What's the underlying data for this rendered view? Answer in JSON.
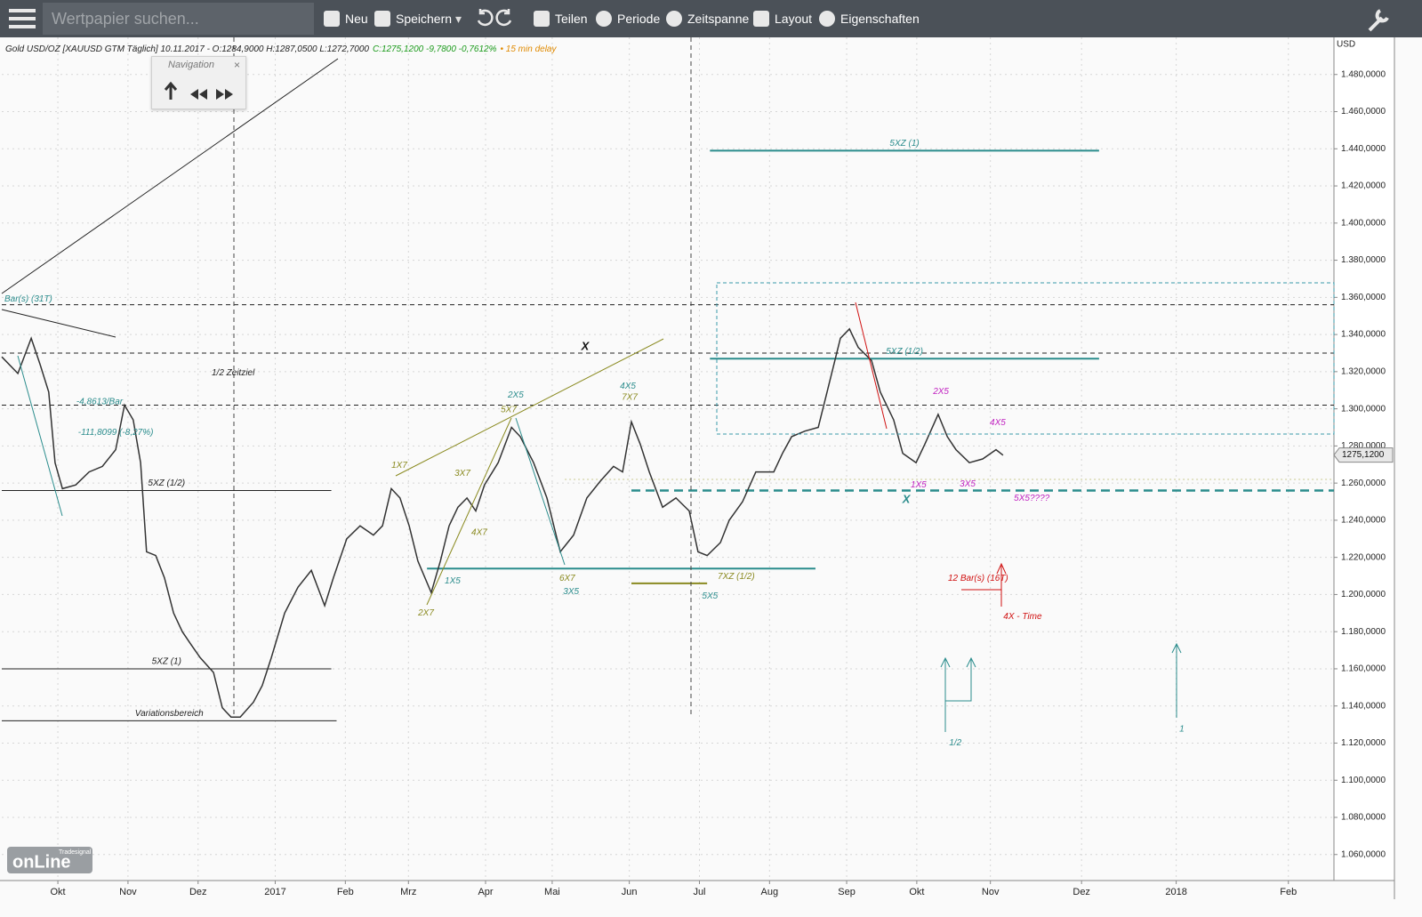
{
  "toolbar": {
    "search_placeholder": "Wertpapier suchen...",
    "buttons": [
      "Neu",
      "Speichern",
      "Teilen",
      "Periode",
      "Zeitspanne",
      "Layout",
      "Eigenschaften"
    ]
  },
  "navigation": {
    "title": "Navigation"
  },
  "logo": {
    "brand": "Tradesignal",
    "name": "onLine"
  },
  "chart_data": {
    "type": "line",
    "header": "Gold USD/OZ [XAUUSD GTM Täglich] 10.11.2017 - O:1284,9000 H:1287,0500 L:1272,7000",
    "change": "C:1275,1200 -9,7800 -0,7612%",
    "delay": "• 15 min delay",
    "y_unit": "USD",
    "color": "#333333",
    "grid": true,
    "xlim": [
      0,
      380
    ],
    "ylim": [
      1046,
      1500
    ],
    "xticks": [
      {
        "value": 16,
        "label": "Okt"
      },
      {
        "value": 36,
        "label": "Nov"
      },
      {
        "value": 56,
        "label": "Dez"
      },
      {
        "value": 78,
        "label": "2017"
      },
      {
        "value": 98,
        "label": "Feb"
      },
      {
        "value": 116,
        "label": "Mrz"
      },
      {
        "value": 138,
        "label": "Apr"
      },
      {
        "value": 157,
        "label": "Mai"
      },
      {
        "value": 179,
        "label": "Jun"
      },
      {
        "value": 199,
        "label": "Jul"
      },
      {
        "value": 219,
        "label": "Aug"
      },
      {
        "value": 241,
        "label": "Sep"
      },
      {
        "value": 261,
        "label": "Okt"
      },
      {
        "value": 282,
        "label": "Nov"
      },
      {
        "value": 308,
        "label": "Dez"
      },
      {
        "value": 335,
        "label": "2018"
      },
      {
        "value": 367,
        "label": "Feb"
      }
    ],
    "yticks": [
      {
        "value": 1060,
        "label": "1.060,0000"
      },
      {
        "value": 1080,
        "label": "1.080,0000"
      },
      {
        "value": 1100,
        "label": "1.100,0000"
      },
      {
        "value": 1120,
        "label": "1.120,0000"
      },
      {
        "value": 1140,
        "label": "1.140,0000"
      },
      {
        "value": 1160,
        "label": "1.160,0000"
      },
      {
        "value": 1180,
        "label": "1.180,0000"
      },
      {
        "value": 1200,
        "label": "1.200,0000"
      },
      {
        "value": 1220,
        "label": "1.220,0000"
      },
      {
        "value": 1240,
        "label": "1.240,0000"
      },
      {
        "value": 1260,
        "label": "1.260,0000"
      },
      {
        "value": 1280,
        "label": "1.280,0000"
      },
      {
        "value": 1300,
        "label": "1.300,0000"
      },
      {
        "value": 1320,
        "label": "1.320,0000"
      },
      {
        "value": 1340,
        "label": "1.340,0000"
      },
      {
        "value": 1360,
        "label": "1.360,0000"
      },
      {
        "value": 1380,
        "label": "1.380,0000"
      },
      {
        "value": 1400,
        "label": "1.400,0000"
      },
      {
        "value": 1420,
        "label": "1.420,0000"
      },
      {
        "value": 1440,
        "label": "1.440,0000"
      },
      {
        "value": 1460,
        "label": "1.460,0000"
      },
      {
        "value": 1480,
        "label": "1.480,0000"
      }
    ],
    "x": [
      0,
      4.6,
      8.4,
      10.9,
      13.4,
      15.2,
      17.3,
      21.1,
      24.9,
      28.7,
      32.5,
      35,
      37.5,
      39.6,
      41.3,
      43.9,
      46.4,
      49,
      51.5,
      54,
      56.6,
      60.4,
      62.9,
      65.4,
      68,
      71.8,
      74.3,
      76.9,
      80.7,
      84.5,
      88.3,
      92.1,
      94.6,
      98.4,
      102.2,
      106,
      108.6,
      111.1,
      113.6,
      116.2,
      118.7,
      122.5,
      125.1,
      127.6,
      130.1,
      132.7,
      135.2,
      137.7,
      141.6,
      145.4,
      147.9,
      151.7,
      155.5,
      159.3,
      163.1,
      166.9,
      170.7,
      174.5,
      177.1,
      179.6,
      182.1,
      184.7,
      188.5,
      192.3,
      196.1,
      198.6,
      201.2,
      205,
      207.5,
      211.3,
      215.1,
      220.2,
      222.7,
      225.3,
      229.1,
      232.9,
      235.4,
      239.2,
      241.8,
      244.3,
      248.1,
      250.6,
      254.4,
      257,
      260.8,
      263.3,
      267.1,
      269.7,
      272.2,
      276,
      279.8,
      283.6,
      285.6
    ],
    "values": [
      1328,
      1319,
      1338,
      1324,
      1309,
      1271,
      1257,
      1259,
      1266,
      1269,
      1278,
      1302,
      1294,
      1271,
      1223,
      1221,
      1209,
      1190,
      1180,
      1173,
      1166,
      1158,
      1139,
      1134,
      1134,
      1142,
      1151,
      1166,
      1190,
      1204,
      1213,
      1194,
      1209,
      1230,
      1237,
      1232,
      1237,
      1257,
      1252,
      1237,
      1218,
      1201,
      1218,
      1237,
      1247,
      1252,
      1245,
      1259,
      1271,
      1290,
      1285,
      1271,
      1252,
      1223,
      1232,
      1252,
      1261,
      1269,
      1266,
      1293,
      1281,
      1266,
      1247,
      1252,
      1245,
      1223,
      1221,
      1228,
      1240,
      1250,
      1266,
      1266,
      1276,
      1285,
      1288,
      1290,
      1309,
      1338,
      1343,
      1333,
      1326,
      1309,
      1294,
      1276,
      1271,
      1281,
      1297,
      1285,
      1278,
      1271,
      1273,
      1278,
      1275
    ],
    "last": {
      "value": 1275.12,
      "label": "1275,1200"
    },
    "levels": [
      {
        "value": 1356,
        "x": [
          0,
          380
        ],
        "color": "#222222",
        "style": "dashed"
      },
      {
        "value": 1330,
        "x": [
          0,
          380
        ],
        "color": "#222222",
        "style": "dashed"
      },
      {
        "value": 1302,
        "x": [
          0,
          380
        ],
        "color": "#222222",
        "style": "dashed"
      },
      {
        "label": "5XZ (1)",
        "value": 1439,
        "x": [
          202,
          313
        ],
        "color": "#2a8c8c",
        "style": "solid"
      },
      {
        "label": "5XZ (1/2)",
        "value": 1327,
        "x": [
          202,
          313
        ],
        "color": "#2a8c8c",
        "style": "solid"
      },
      {
        "value": 1256,
        "x": [
          179.6,
          380
        ],
        "color": "#2a8c8c",
        "style": "bold-dashed"
      },
      {
        "value": 1214,
        "x": [
          121.3,
          232.1
        ],
        "color": "#2a8c8c",
        "style": "solid"
      },
      {
        "value": 1262,
        "x": [
          160.6,
          380
        ],
        "color": "#c8c890",
        "style": "dotted"
      },
      {
        "value": 1206,
        "x": [
          179.6,
          201.2
        ],
        "color": "#8a8a20",
        "style": "solid"
      },
      {
        "label": "5XZ (1/2)",
        "value": 1256,
        "x": [
          0,
          94
        ],
        "color": "#222222",
        "style": "solid"
      },
      {
        "label": "5XZ (1)",
        "value": 1160,
        "x": [
          0,
          94
        ],
        "color": "#222222",
        "style": "solid"
      },
      {
        "label": "Variationsbereich",
        "value": 1132,
        "x": [
          0,
          95.5
        ],
        "color": "#222222",
        "style": "solid"
      }
    ],
    "annotations": [
      {
        "text": "Bar(s) (31T)",
        "x": 7.6,
        "y": 1359,
        "color": "#2a8c8c"
      },
      {
        "text": "1/2 Zeitziel",
        "x": 66,
        "y": 1319.4,
        "color": "#222222"
      },
      {
        "text": "-4,8613/Bar",
        "x": 27.9,
        "y": 1303.6,
        "color": "#2a8c8c"
      },
      {
        "text": "-111,8099 (-8,27%)",
        "x": 32.5,
        "y": 1287.3,
        "color": "#2a8c8c"
      },
      {
        "text": "X",
        "x": 166.4,
        "y": 1333.3,
        "color": "#111111"
      },
      {
        "text": "X",
        "x": 258,
        "y": 1251,
        "color": "#2a8c8c"
      },
      {
        "text": "1X7",
        "x": 113.4,
        "y": 1269.5,
        "color": "#8a8a20"
      },
      {
        "text": "2X7",
        "x": 121,
        "y": 1190,
        "color": "#8a8a20"
      },
      {
        "text": "1X5",
        "x": 128.6,
        "y": 1207.2,
        "color": "#2a8c8c"
      },
      {
        "text": "3X7",
        "x": 131.4,
        "y": 1265.2,
        "color": "#8a8a20"
      },
      {
        "text": "4X7",
        "x": 136.2,
        "y": 1233.2,
        "color": "#8a8a20"
      },
      {
        "text": "5X7",
        "x": 144.6,
        "y": 1299.3,
        "color": "#8a8a20"
      },
      {
        "text": "2X5",
        "x": 146.6,
        "y": 1307.4,
        "color": "#2a8c8c"
      },
      {
        "text": "6X7",
        "x": 161.3,
        "y": 1208.7,
        "color": "#8a8a20"
      },
      {
        "text": "3X5",
        "x": 162.4,
        "y": 1201.5,
        "color": "#2a8c8c"
      },
      {
        "text": "4X5",
        "x": 178.6,
        "y": 1312.2,
        "color": "#2a8c8c"
      },
      {
        "text": "7X7",
        "x": 179.1,
        "y": 1306,
        "color": "#8a8a20"
      },
      {
        "text": "5X5",
        "x": 202,
        "y": 1199.1,
        "color": "#2a8c8c"
      },
      {
        "text": "7XZ (1/2)",
        "x": 209.5,
        "y": 1209.6,
        "color": "#8a8a20"
      },
      {
        "text": "2X5",
        "x": 267.9,
        "y": 1309.3,
        "color": "#c020c0"
      },
      {
        "text": "4X5",
        "x": 284.1,
        "y": 1292.5,
        "color": "#c020c0"
      },
      {
        "text": "1X5",
        "x": 261.5,
        "y": 1259,
        "color": "#c020c0"
      },
      {
        "text": "3X5",
        "x": 275.5,
        "y": 1259.5,
        "color": "#c020c0"
      },
      {
        "text": "5X5????",
        "x": 293.8,
        "y": 1251.8,
        "color": "#c020c0"
      },
      {
        "text": "12 Bar(s) (16T)",
        "x": 278.5,
        "y": 1208.7,
        "color": "#d01010"
      },
      {
        "text": "4X - Time",
        "x": 291.2,
        "y": 1188.1,
        "color": "#d01010"
      },
      {
        "text": "1/2",
        "x": 272,
        "y": 1120,
        "color": "#2a8c8c"
      },
      {
        "text": "1",
        "x": 336.6,
        "y": 1127.6,
        "color": "#2a8c8c"
      }
    ]
  }
}
